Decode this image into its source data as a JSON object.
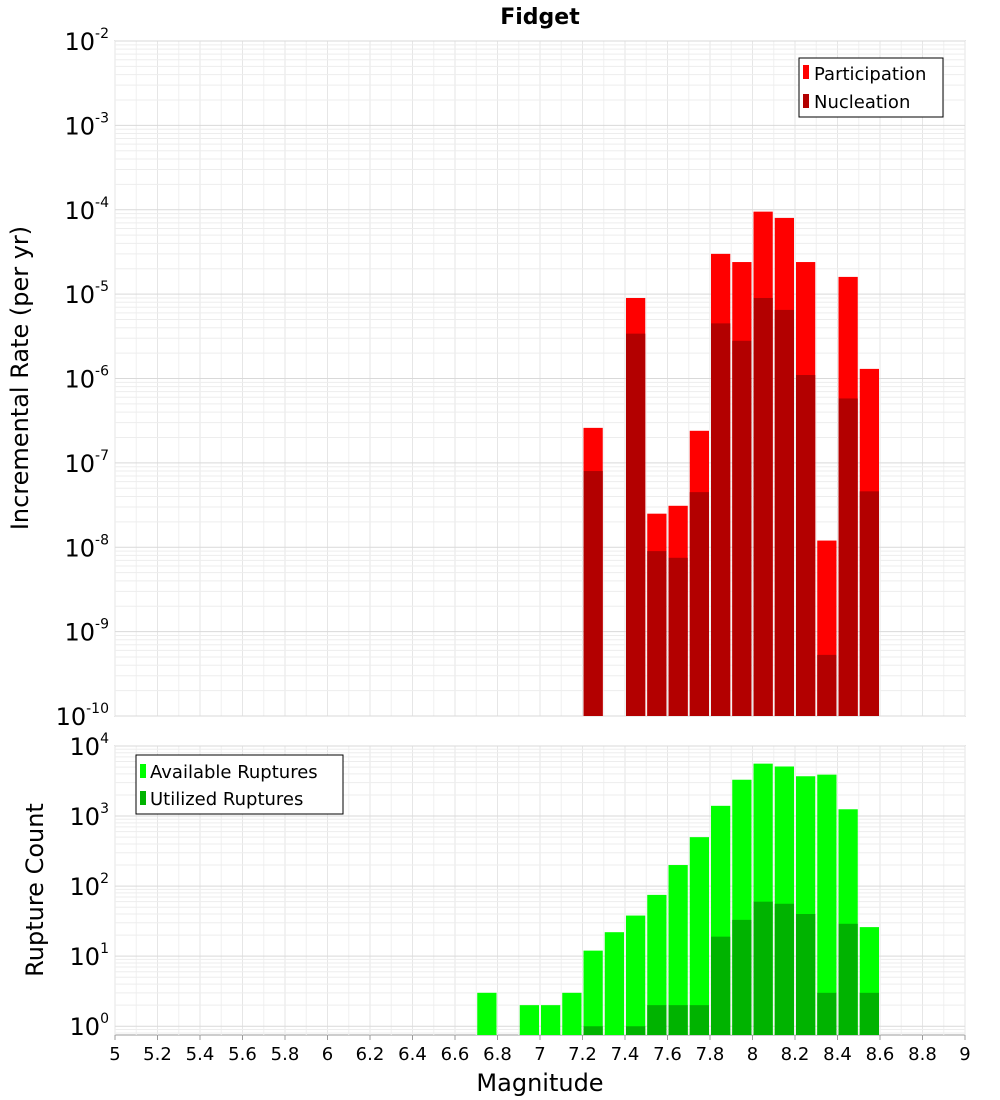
{
  "chart_data": [
    {
      "type": "bar",
      "title": "Fidget",
      "xlabel": "",
      "ylabel": "Incremental Rate (per yr)",
      "yscale": "log",
      "ylim": [
        1e-10,
        0.01
      ],
      "xlim": [
        5,
        9
      ],
      "grid": true,
      "legend_position": "top-right",
      "bar_width": 0.1,
      "y_ticks": [
        {
          "base": "10",
          "exp": "-10",
          "value": 1e-10
        },
        {
          "base": "10",
          "exp": "-9",
          "value": 1e-09
        },
        {
          "base": "10",
          "exp": "-8",
          "value": 1e-08
        },
        {
          "base": "10",
          "exp": "-7",
          "value": 1e-07
        },
        {
          "base": "10",
          "exp": "-6",
          "value": 1e-06
        },
        {
          "base": "10",
          "exp": "-5",
          "value": 1e-05
        },
        {
          "base": "10",
          "exp": "-4",
          "value": 0.0001
        },
        {
          "base": "10",
          "exp": "-3",
          "value": 0.001
        },
        {
          "base": "10",
          "exp": "-2",
          "value": 0.01
        }
      ],
      "series": [
        {
          "name": "Participation",
          "color": "#ff0000",
          "x": [
            7.25,
            7.45,
            7.55,
            7.65,
            7.75,
            7.85,
            7.95,
            8.05,
            8.15,
            8.25,
            8.35,
            8.45,
            8.55
          ],
          "values": [
            2.6e-07,
            9e-06,
            2.5e-08,
            3.1e-08,
            2.4e-07,
            3e-05,
            2.4e-05,
            9.5e-05,
            8e-05,
            2.4e-05,
            1.2e-08,
            1.6e-05,
            1.3e-06
          ]
        },
        {
          "name": "Nucleation",
          "color": "#b30000",
          "x": [
            7.25,
            7.45,
            7.55,
            7.65,
            7.75,
            7.85,
            7.95,
            8.05,
            8.15,
            8.25,
            8.35,
            8.45,
            8.55
          ],
          "values": [
            8e-08,
            3.4e-06,
            9e-09,
            7.5e-09,
            4.5e-08,
            4.5e-06,
            2.8e-06,
            9e-06,
            6.5e-06,
            1.1e-06,
            5.3e-10,
            5.8e-07,
            4.6e-08
          ]
        }
      ]
    },
    {
      "type": "bar",
      "title": "",
      "xlabel": "Magnitude",
      "ylabel": "Rupture Count",
      "yscale": "log",
      "ylim": [
        0.75,
        10000
      ],
      "xlim": [
        5,
        9
      ],
      "grid": true,
      "legend_position": "top-left",
      "bar_width": 0.1,
      "x_ticks": [
        "5",
        "5.2",
        "5.4",
        "5.6",
        "5.8",
        "6",
        "6.2",
        "6.4",
        "6.6",
        "6.8",
        "7",
        "7.2",
        "7.4",
        "7.6",
        "7.8",
        "8",
        "8.2",
        "8.4",
        "8.6",
        "8.8",
        "9"
      ],
      "y_ticks": [
        {
          "base": "10",
          "exp": "0",
          "value": 1
        },
        {
          "base": "10",
          "exp": "1",
          "value": 10
        },
        {
          "base": "10",
          "exp": "2",
          "value": 100
        },
        {
          "base": "10",
          "exp": "3",
          "value": 1000
        },
        {
          "base": "10",
          "exp": "4",
          "value": 10000
        }
      ],
      "series": [
        {
          "name": "Available Ruptures",
          "color": "#00ff00",
          "x": [
            6.75,
            6.95,
            7.05,
            7.15,
            7.25,
            7.35,
            7.45,
            7.55,
            7.65,
            7.75,
            7.85,
            7.95,
            8.05,
            8.15,
            8.25,
            8.35,
            8.45,
            8.55
          ],
          "values": [
            3,
            2,
            2,
            3,
            12,
            22,
            38,
            75,
            200,
            500,
            1400,
            3300,
            5600,
            5100,
            3700,
            3900,
            1250,
            26
          ]
        },
        {
          "name": "Utilized Ruptures",
          "color": "#00b300",
          "x": [
            7.25,
            7.45,
            7.55,
            7.65,
            7.75,
            7.85,
            7.95,
            8.05,
            8.15,
            8.25,
            8.35,
            8.45,
            8.55
          ],
          "values": [
            1,
            1,
            2,
            2,
            2,
            19,
            33,
            60,
            56,
            40,
            3,
            29,
            3
          ]
        }
      ]
    }
  ]
}
